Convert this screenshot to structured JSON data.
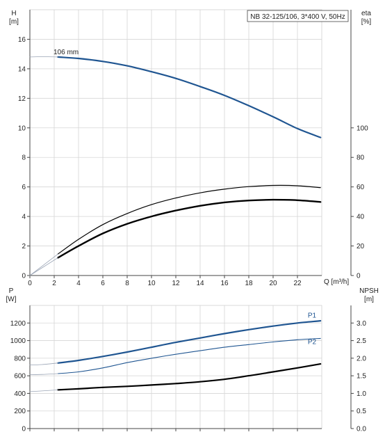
{
  "colors": {
    "blue": "#1f5591",
    "black": "#000000",
    "grid": "#d6d6d6",
    "extension": "#9aa4b5"
  },
  "chart_data": [
    {
      "type": "line",
      "title": "NB 32-125/106, 3*400 V, 50Hz",
      "xlabel": "Q [m³/h]",
      "ylabel_left": [
        "H",
        "[m]"
      ],
      "ylabel_right": [
        "eta",
        "[%]"
      ],
      "xlim": [
        0,
        24
      ],
      "ylim_left": [
        0,
        18
      ],
      "ylim_right": [
        0,
        180
      ],
      "x_ticks": [
        "0",
        "2",
        "4",
        "6",
        "8",
        "10",
        "12",
        "14",
        "16",
        "18",
        "20",
        "22"
      ],
      "y_ticks_left": [
        "0",
        "2",
        "4",
        "6",
        "8",
        "10",
        "12",
        "14",
        "16"
      ],
      "y_ticks_right": [
        "0",
        "20",
        "40",
        "60",
        "80",
        "100"
      ],
      "grid": true,
      "annotations": [
        {
          "text": "106 mm",
          "x": 2.4,
          "y": 14.8
        }
      ],
      "series": [
        {
          "axis": "left",
          "color": "#1f5591",
          "width": 2.2,
          "x": [
            2.3,
            4,
            6,
            8,
            10,
            12,
            14,
            16,
            18,
            20,
            22,
            23.9
          ],
          "y": [
            14.8,
            14.7,
            14.5,
            14.2,
            13.8,
            13.35,
            12.8,
            12.2,
            11.5,
            10.75,
            9.95,
            9.35
          ]
        },
        {
          "axis": "left",
          "color": "#9aa4b5",
          "width": 0.8,
          "x": [
            0,
            1,
            2.3
          ],
          "y": [
            14.8,
            14.82,
            14.8
          ]
        },
        {
          "axis": "right",
          "color": "#000000",
          "width": 1.2,
          "x": [
            2.3,
            4,
            6,
            8,
            10,
            12,
            14,
            16,
            18,
            20,
            22,
            23.9
          ],
          "y": [
            14.5,
            24.5,
            34.5,
            42.0,
            48.0,
            52.5,
            56.0,
            58.5,
            60.2,
            61.0,
            60.8,
            59.5
          ]
        },
        {
          "axis": "right",
          "color": "#9aa4b5",
          "width": 0.8,
          "x": [
            0,
            2.3
          ],
          "y": [
            0,
            14.5
          ]
        },
        {
          "axis": "right",
          "color": "#000000",
          "width": 2.4,
          "x": [
            2.3,
            4,
            6,
            8,
            10,
            12,
            14,
            16,
            18,
            20,
            22,
            23.9
          ],
          "y": [
            12.0,
            20.0,
            28.5,
            35.0,
            40.0,
            44.0,
            47.2,
            49.5,
            50.8,
            51.3,
            51.0,
            49.8
          ]
        },
        {
          "axis": "right",
          "color": "#9aa4b5",
          "width": 0.8,
          "x": [
            0,
            2.3
          ],
          "y": [
            0,
            12.0
          ]
        }
      ]
    },
    {
      "type": "line",
      "ylabel_left": [
        "P",
        "[W]"
      ],
      "ylabel_right": [
        "NPSH",
        "[m]"
      ],
      "xlim": [
        0,
        24
      ],
      "ylim_left": [
        0,
        1400
      ],
      "ylim_right": [
        0,
        3.5
      ],
      "y_ticks_left": [
        "0",
        "200",
        "400",
        "600",
        "800",
        "1000",
        "1200"
      ],
      "y_ticks_right": [
        "0.0",
        "0.5",
        "1.0",
        "1.5",
        "2.0",
        "2.5",
        "3.0"
      ],
      "grid": true,
      "series": [
        {
          "name": "P1",
          "axis": "left",
          "color": "#1f5591",
          "width": 2.2,
          "x": [
            2.3,
            4,
            6,
            8,
            10,
            12,
            14,
            16,
            18,
            20,
            22,
            23.9
          ],
          "y": [
            745,
            775,
            820,
            870,
            925,
            980,
            1030,
            1080,
            1125,
            1165,
            1200,
            1225
          ]
        },
        {
          "axis": "left",
          "color": "#9aa4b5",
          "width": 0.8,
          "x": [
            0,
            1,
            2.3
          ],
          "y": [
            722,
            728,
            745
          ]
        },
        {
          "name": "P2",
          "axis": "left",
          "color": "#1f5591",
          "width": 1.1,
          "x": [
            2.3,
            4,
            6,
            8,
            10,
            12,
            14,
            16,
            18,
            20,
            22,
            23.9
          ],
          "y": [
            625,
            645,
            690,
            750,
            800,
            845,
            885,
            925,
            955,
            985,
            1010,
            1025
          ]
        },
        {
          "axis": "left",
          "color": "#9aa4b5",
          "width": 0.8,
          "x": [
            0,
            1,
            2.3
          ],
          "y": [
            612,
            615,
            625
          ]
        },
        {
          "axis": "left",
          "color": "#000000",
          "width": 2.2,
          "x": [
            2.3,
            4,
            6,
            8,
            10,
            12,
            14,
            16,
            18,
            20,
            22,
            23.9
          ],
          "y": [
            440,
            452,
            468,
            480,
            495,
            512,
            532,
            560,
            600,
            645,
            690,
            735
          ]
        },
        {
          "axis": "left",
          "color": "#9aa4b5",
          "width": 0.8,
          "x": [
            0,
            1,
            2.3
          ],
          "y": [
            420,
            428,
            440
          ]
        }
      ],
      "labels": [
        {
          "text": "P1",
          "x": 23.2,
          "y": 1260
        },
        {
          "text": "P2",
          "x": 23.2,
          "y": 960
        }
      ]
    }
  ]
}
